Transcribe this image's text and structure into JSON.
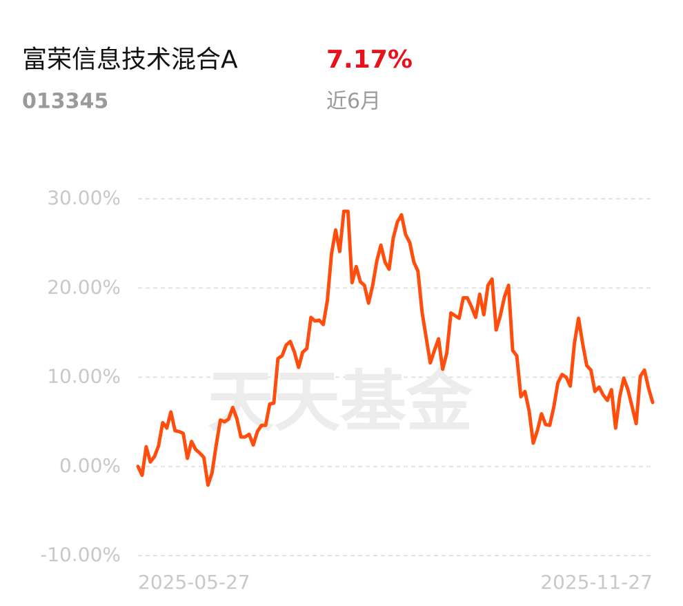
{
  "chart_data": {
    "type": "line",
    "title": "富荣信息技术混合A",
    "return": "7.17%",
    "code": "013345",
    "period": "近6月",
    "watermark": "天天基金",
    "categories": [
      "2025-05-27",
      null,
      null,
      null,
      null,
      null,
      null,
      null,
      null,
      null,
      null,
      null,
      null,
      null,
      null,
      null,
      null,
      null,
      null,
      null,
      null,
      null,
      null,
      null,
      null,
      null,
      null,
      null,
      null,
      null,
      null,
      null,
      null,
      null,
      null,
      null,
      null,
      null,
      null,
      null,
      null,
      null,
      null,
      null,
      null,
      null,
      null,
      null,
      null,
      null,
      null,
      null,
      null,
      null,
      null,
      null,
      null,
      null,
      null,
      null,
      null,
      null,
      null,
      null,
      null,
      null,
      null,
      null,
      null,
      null,
      null,
      null,
      null,
      null,
      null,
      null,
      null,
      null,
      null,
      null,
      null,
      null,
      null,
      null,
      null,
      null,
      null,
      null,
      null,
      null,
      null,
      null,
      null,
      null,
      null,
      null,
      null,
      null,
      null,
      null,
      null,
      null,
      null,
      null,
      null,
      null,
      null,
      null,
      null,
      null,
      null,
      null,
      null,
      null,
      null,
      null,
      null,
      null,
      null,
      null,
      null,
      null,
      null,
      null,
      null,
      "2025-11-27"
    ],
    "series": [
      {
        "color": "#ff4d0d",
        "values": [
          0,
          -1.0,
          2.2,
          0.5,
          1.1,
          2.3,
          4.9,
          4.3,
          6.1,
          4.0,
          3.9,
          3.7,
          0.9,
          2.8,
          1.9,
          1.5,
          1.0,
          -2.1,
          -0.7,
          2.4,
          5.2,
          5.0,
          5.3,
          6.6,
          5.4,
          3.3,
          3.3,
          3.6,
          2.4,
          3.9,
          4.6,
          4.6,
          7.0,
          7.1,
          12.1,
          12.4,
          13.6,
          14.0,
          12.8,
          11.1,
          12.8,
          13.2,
          16.7,
          16.3,
          16.4,
          15.9,
          18.6,
          23.8,
          26.5,
          24.1,
          28.6,
          28.6,
          20.6,
          22.4,
          20.7,
          20.3,
          18.3,
          20.3,
          23.0,
          24.8,
          22.9,
          22.1,
          25.6,
          27.4,
          28.2,
          26.0,
          25.1,
          22.9,
          21.9,
          17.3,
          14.4,
          11.6,
          13.0,
          14.3,
          10.9,
          12.7,
          17.2,
          16.9,
          16.6,
          18.9,
          18.9,
          17.9,
          16.7,
          19.3,
          17.0,
          20.3,
          21.0,
          15.3,
          16.9,
          19.0,
          20.3,
          13.0,
          12.4,
          7.8,
          8.4,
          6.2,
          2.6,
          4.0,
          5.9,
          4.7,
          4.6,
          6.7,
          9.4,
          10.3,
          10.0,
          9.0,
          13.8,
          16.6,
          13.8,
          11.3,
          10.8,
          8.4,
          8.9,
          8.0,
          7.4,
          8.6,
          4.3,
          7.8,
          9.9,
          8.6,
          6.7,
          4.8,
          10.1,
          10.8,
          8.8,
          7.17
        ]
      }
    ],
    "ylim": [
      -10,
      30
    ],
    "yticks": [
      {
        "value": -10,
        "label": "-10.00%"
      },
      {
        "value": 0,
        "label": "0.00%"
      },
      {
        "value": 10,
        "label": "10.00%"
      },
      {
        "value": 20,
        "label": "20.00%"
      },
      {
        "value": 30,
        "label": "30.00%"
      }
    ],
    "grid": true
  }
}
